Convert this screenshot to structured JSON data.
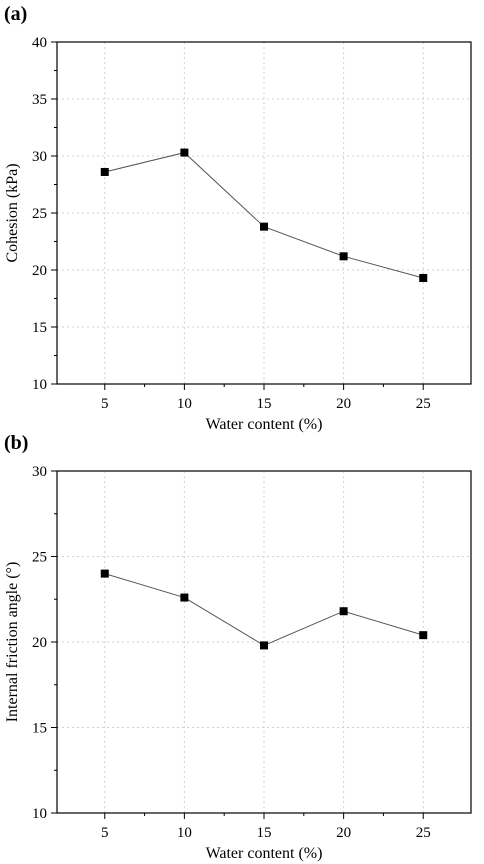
{
  "chart_data": [
    {
      "type": "line",
      "panel_label": "(a)",
      "xlabel": "Water content (%)",
      "ylabel": "Cohesion (kPa)",
      "xlim": [
        2,
        28
      ],
      "ylim": [
        10,
        40
      ],
      "x_ticks": [
        5,
        10,
        15,
        20,
        25
      ],
      "y_ticks": [
        10,
        15,
        20,
        25,
        30,
        35,
        40
      ],
      "grid": true,
      "x": [
        5,
        10,
        15,
        20,
        25
      ],
      "series": [
        {
          "values": [
            28.6,
            30.3,
            23.8,
            21.2,
            19.3
          ]
        }
      ],
      "marker": "square",
      "line_color": "#555555",
      "marker_color": "#000000"
    },
    {
      "type": "line",
      "panel_label": "(b)",
      "xlabel": "Water content (%)",
      "ylabel": "Internal friction angle (°)",
      "xlim": [
        2,
        28
      ],
      "ylim": [
        10,
        30
      ],
      "x_ticks": [
        5,
        10,
        15,
        20,
        25
      ],
      "y_ticks": [
        10,
        15,
        20,
        25,
        30
      ],
      "grid": true,
      "x": [
        5,
        10,
        15,
        20,
        25
      ],
      "series": [
        {
          "values": [
            24.0,
            22.6,
            19.8,
            21.8,
            20.4
          ]
        }
      ],
      "marker": "square",
      "line_color": "#555555",
      "marker_color": "#000000"
    }
  ]
}
